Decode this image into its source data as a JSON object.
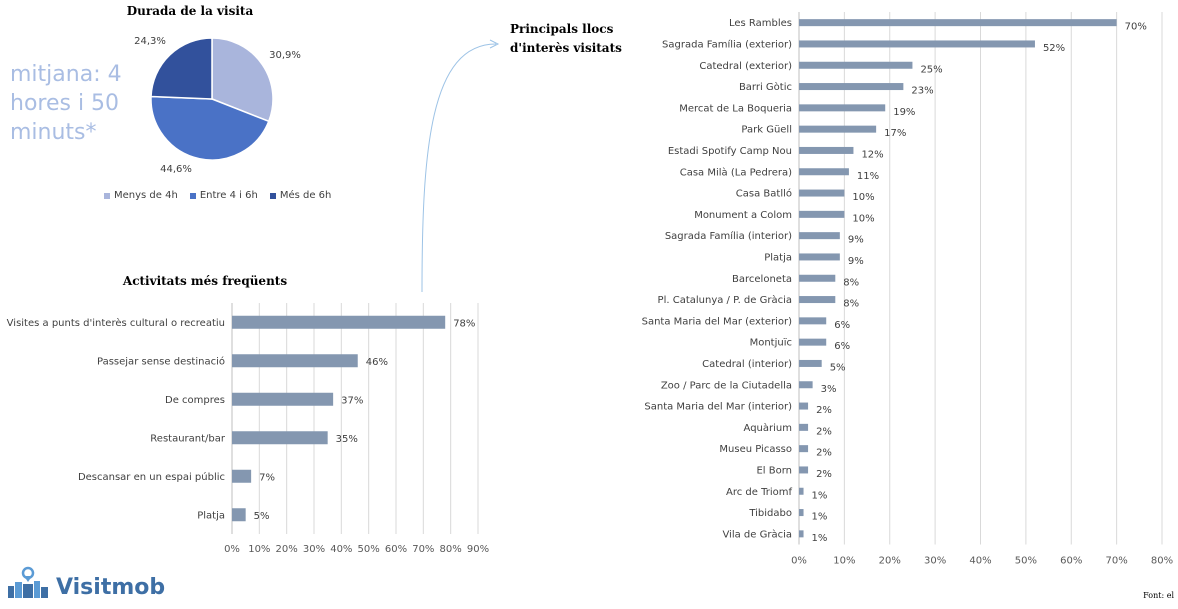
{
  "pie": {
    "title": "Durada de la visita",
    "average_note": "mitjana: 4 hores i 50 minuts*",
    "colors": [
      "#a9b5dc",
      "#4a72c6",
      "#32519c"
    ],
    "legend_labels": [
      "Menys de 4h",
      "Entre 4 i 6h",
      "Més de 6h"
    ],
    "data_labels": [
      "30,9%",
      "44,6%",
      "24,3%"
    ]
  },
  "activities": {
    "title": "Activitats més freqüents"
  },
  "places": {
    "title_line1": "Principals llocs",
    "title_line2": "d'interès visitats"
  },
  "logo": {
    "text": "Visitmob"
  },
  "source": {
    "text": "Font: el"
  },
  "chart_data": [
    {
      "type": "pie",
      "title": "Durada de la visita",
      "categories": [
        "Menys de 4h",
        "Entre 4 i 6h",
        "Més de 6h"
      ],
      "values": [
        30.9,
        44.6,
        24.3
      ],
      "legend": "bottom"
    },
    {
      "type": "bar",
      "orientation": "horizontal",
      "title": "Activitats més freqüents",
      "categories": [
        "Visites a punts d'interès cultural o recreatiu",
        "Passejar sense destinació",
        "De compres",
        "Restaurant/bar",
        "Descansar en un espai públic",
        "Platja"
      ],
      "values": [
        78,
        46,
        37,
        35,
        7,
        5
      ],
      "value_suffix": "%",
      "xlim": [
        0,
        90
      ],
      "xticks": [
        0,
        10,
        20,
        30,
        40,
        50,
        60,
        70,
        80,
        90
      ],
      "grid": true,
      "bar_color": "#8497b0"
    },
    {
      "type": "bar",
      "orientation": "horizontal",
      "title": "Principals llocs d'interès visitats",
      "categories": [
        "Les Rambles",
        "Sagrada Família (exterior)",
        "Catedral (exterior)",
        "Barri Gòtic",
        "Mercat de La Boqueria",
        "Park Güell",
        "Estadi Spotify Camp Nou",
        "Casa Milà (La Pedrera)",
        "Casa Batlló",
        "Monument a Colom",
        "Sagrada Família (interior)",
        "Platja",
        "Barceloneta",
        "Pl. Catalunya / P. de Gràcia",
        "Santa Maria del Mar (exterior)",
        "Montjuïc",
        "Catedral (interior)",
        "Zoo / Parc de la Ciutadella",
        "Santa Maria del Mar (interior)",
        "Aquàrium",
        "Museu Picasso",
        "El Born",
        "Arc de Triomf",
        "Tibidabo",
        "Vila de Gràcia"
      ],
      "values": [
        70,
        52,
        25,
        23,
        19,
        17,
        12,
        11,
        10,
        10,
        9,
        9,
        8,
        8,
        6,
        6,
        5,
        3,
        2,
        2,
        2,
        2,
        1,
        1,
        1
      ],
      "value_suffix": "%",
      "xlim": [
        0,
        80
      ],
      "xticks": [
        0,
        10,
        20,
        30,
        40,
        50,
        60,
        70,
        80
      ],
      "grid": true,
      "bar_color": "#8497b0"
    }
  ]
}
